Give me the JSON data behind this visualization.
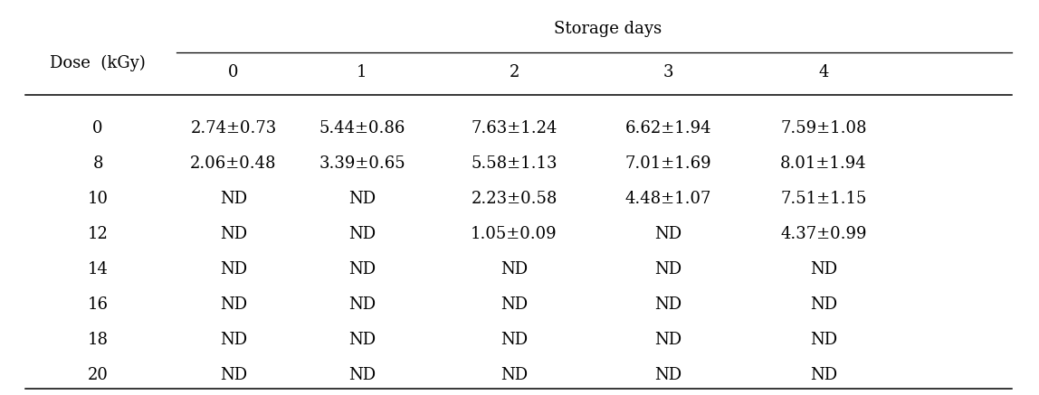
{
  "header_top": "Storage days",
  "header_row": [
    "0",
    "1",
    "2",
    "3",
    "4"
  ],
  "col0_header": "Dose  (kGy)",
  "rows": [
    [
      "0",
      "2.74±0.73",
      "5.44±0.86",
      "7.63±1.24",
      "6.62±1.94",
      "7.59±1.08"
    ],
    [
      "8",
      "2.06±0.48",
      "3.39±0.65",
      "5.58±1.13",
      "7.01±1.69",
      "8.01±1.94"
    ],
    [
      "10",
      "ND",
      "ND",
      "2.23±0.58",
      "4.48±1.07",
      "7.51±1.15"
    ],
    [
      "12",
      "ND",
      "ND",
      "1.05±0.09",
      "ND",
      "4.37±0.99"
    ],
    [
      "14",
      "ND",
      "ND",
      "ND",
      "ND",
      "ND"
    ],
    [
      "16",
      "ND",
      "ND",
      "ND",
      "ND",
      "ND"
    ],
    [
      "18",
      "ND",
      "ND",
      "ND",
      "ND",
      "ND"
    ],
    [
      "20",
      "ND",
      "ND",
      "ND",
      "ND",
      "ND"
    ]
  ],
  "background_color": "#ffffff",
  "text_color": "#000000",
  "font_size": 13,
  "header_font_size": 13,
  "figsize": [
    11.48,
    4.37
  ],
  "dpi": 100
}
